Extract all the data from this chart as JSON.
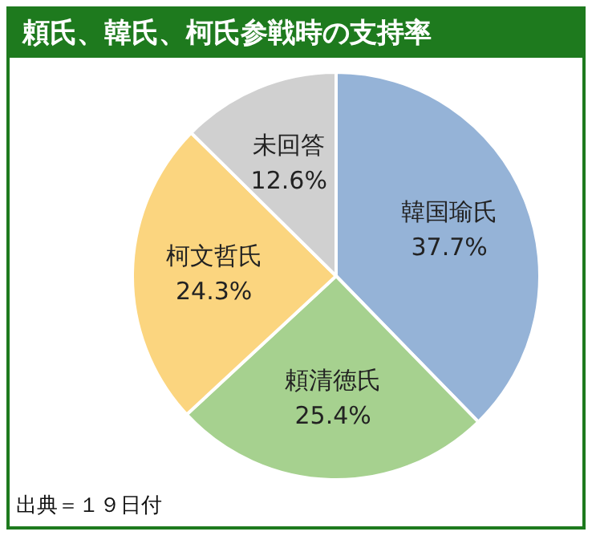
{
  "chart_data": {
    "type": "pie",
    "title": "頼氏、韓氏、柯氏参戦時の支持率",
    "categories": [
      "韓国瑜氏",
      "頼清徳氏",
      "柯文哲氏",
      "未回答"
    ],
    "values": [
      37.7,
      25.4,
      24.3,
      12.6
    ],
    "colors": [
      "#95b3d7",
      "#a6d18f",
      "#fbd57f",
      "#d0d0d0"
    ],
    "value_labels": [
      "37.7%",
      "25.4%",
      "24.3%",
      "12.6%"
    ],
    "legend": false,
    "annotations": [
      "出典＝１９日付"
    ]
  }
}
